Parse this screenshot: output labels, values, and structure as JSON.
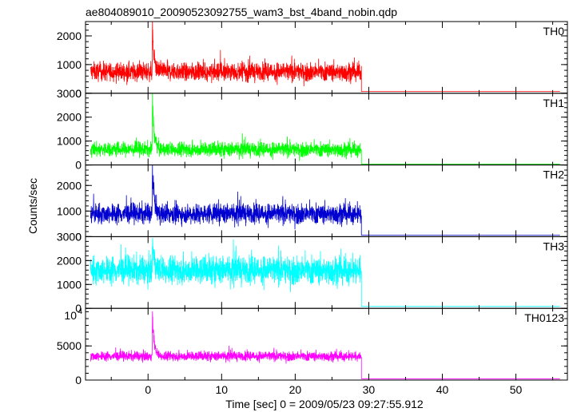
{
  "chart_data": {
    "type": "line",
    "title": "ae804089010_20090523092755_wam3_bst_4band_nobin.qdp",
    "xlabel": "Time [sec] 0 = 2009/05/23 09:27:55.912",
    "ylabel": "Counts/sec",
    "xlim": [
      -8.5,
      57
    ],
    "x_ticks": [
      0,
      10,
      20,
      30,
      40,
      50
    ],
    "x_tick_labels": [
      "0",
      "10",
      "20",
      "30",
      "40",
      "50"
    ],
    "grid": false,
    "panels": [
      {
        "name": "TH0",
        "color": "#ff0000",
        "ylim": [
          0,
          2500
        ],
        "y_ticks": [
          0,
          1000,
          2000
        ],
        "y_tick_labels": [
          "0",
          "1000",
          "2000"
        ],
        "x_start": -7.8,
        "x_end": 29,
        "after_end": 60,
        "mean": 750,
        "noise": 230,
        "spike_peak": 2350,
        "spike_x": 0.6,
        "tail_max": 1800
      },
      {
        "name": "TH1",
        "color": "#00ff00",
        "ylim": [
          0,
          3000
        ],
        "y_ticks": [
          0,
          1000,
          2000,
          3000
        ],
        "y_tick_labels": [
          "0",
          "1000",
          "2000",
          "3000"
        ],
        "x_start": -7.8,
        "x_end": 29,
        "after_end": 30,
        "mean": 650,
        "noise": 220,
        "spike_peak": 2950,
        "spike_x": 0.6,
        "tail_max": 1900
      },
      {
        "name": "TH2",
        "color": "#0000d0",
        "ylim": [
          0,
          2800
        ],
        "y_ticks": [
          0,
          1000,
          2000
        ],
        "y_tick_labels": [
          "0",
          "1000",
          "2000"
        ],
        "x_start": -7.8,
        "x_end": 29,
        "after_end": 60,
        "mean": 900,
        "noise": 280,
        "spike_peak": 2700,
        "spike_x": 0.6,
        "tail_max": 1700
      },
      {
        "name": "TH3",
        "color": "#00ffff",
        "ylim": [
          0,
          3000
        ],
        "y_ticks": [
          0,
          1000,
          2000,
          3000
        ],
        "y_tick_labels": [
          "0",
          "1000",
          "2000",
          "3000"
        ],
        "x_start": -7.8,
        "x_end": 29,
        "after_end": 80,
        "mean": 1600,
        "noise": 420,
        "spike_peak": 2900,
        "spike_x": 0.6,
        "tail_max": 0
      },
      {
        "name": "TH0123",
        "color": "#ff00ff",
        "ylim": [
          0,
          10500
        ],
        "y_ticks": [
          0,
          5000
        ],
        "y_tick_labels": [
          "0",
          "5000"
        ],
        "y_top_label": "10",
        "y_top_exponent": "4",
        "x_start": -7.8,
        "x_end": 29,
        "after_end": 180,
        "mean": 3500,
        "noise": 500,
        "spike_peak": 10000,
        "spike_x": 0.6,
        "tail_max": 7000
      }
    ]
  }
}
